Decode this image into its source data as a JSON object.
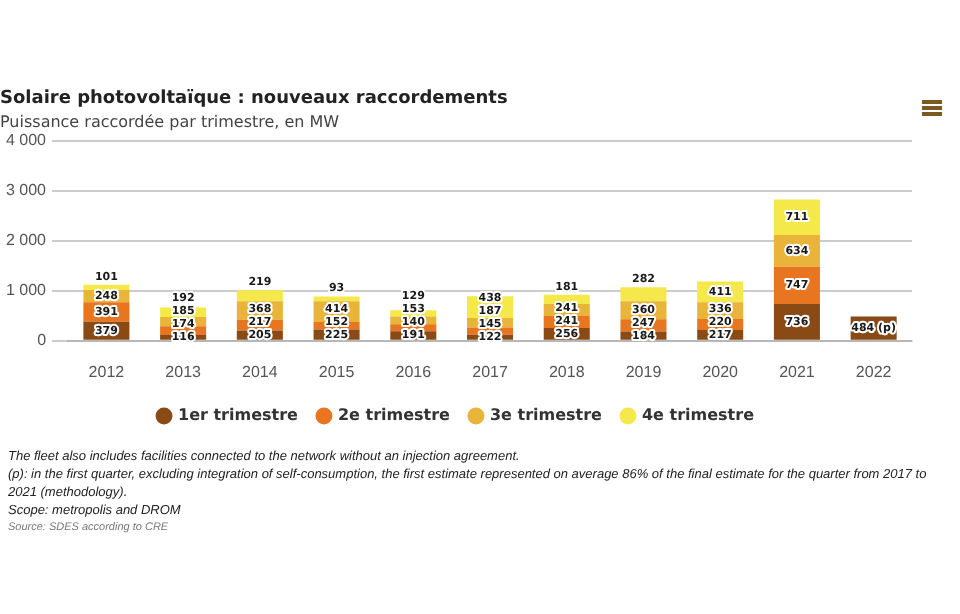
{
  "chart_data": {
    "type": "bar",
    "title": "Solaire photovoltaïque : nouveaux raccordements",
    "subtitle": "Puissance raccordée par trimestre, en MW",
    "categories": [
      "2012",
      "2013",
      "2014",
      "2015",
      "2016",
      "2017",
      "2018",
      "2019",
      "2020",
      "2021",
      "2022"
    ],
    "stacked": true,
    "series": [
      {
        "name": "1er trimestre",
        "color": "#8a4a16",
        "values": [
          379,
          116,
          205,
          225,
          191,
          122,
          256,
          184,
          217,
          736,
          484
        ],
        "value_labels": [
          "379",
          "116",
          "205",
          "225",
          "191",
          "122",
          "256",
          "184",
          "217",
          "736",
          "484 (p)"
        ]
      },
      {
        "name": "2e trimestre",
        "color": "#e8751f",
        "values": [
          391,
          174,
          217,
          152,
          140,
          145,
          241,
          247,
          220,
          747,
          null
        ],
        "value_labels": [
          "391",
          "174",
          "217",
          "152",
          "140",
          "145",
          "241",
          "247",
          "220",
          "747",
          null
        ]
      },
      {
        "name": "3e trimestre",
        "color": "#e8b43a",
        "values": [
          248,
          185,
          368,
          414,
          153,
          187,
          241,
          360,
          336,
          634,
          null
        ],
        "value_labels": [
          "248",
          "185",
          "368",
          "414",
          "153",
          "187",
          "241",
          "360",
          "336",
          "634",
          null
        ]
      },
      {
        "name": "4e trimestre",
        "color": "#f5e84a",
        "values": [
          101,
          192,
          219,
          93,
          129,
          438,
          181,
          282,
          411,
          711,
          null
        ],
        "value_labels": [
          "101",
          "192",
          "219",
          "93",
          "129",
          "438",
          "181",
          "282",
          "411",
          "711",
          null
        ]
      }
    ],
    "ylim": [
      0,
      4000
    ],
    "yticks": [
      0,
      {
        "value": 1000,
        "label": "1 000"
      },
      {
        "value": 2000,
        "label": "2 000"
      },
      {
        "value": 3000,
        "label": "3 000"
      },
      {
        "value": 4000,
        "label": "4 000"
      }
    ],
    "grid": "y",
    "legend": "bottom",
    "annotations": [
      "The fleet also includes facilities connected to the network without an injection agreement.",
      "(p): in the first quarter, excluding integration of self-consumption, the first estimate represented on average 86% of the final estimate for the quarter from 2017 to 2021 (methodology).",
      "Scope: metropolis and DROM",
      "Source: SDES according to CRE"
    ]
  }
}
